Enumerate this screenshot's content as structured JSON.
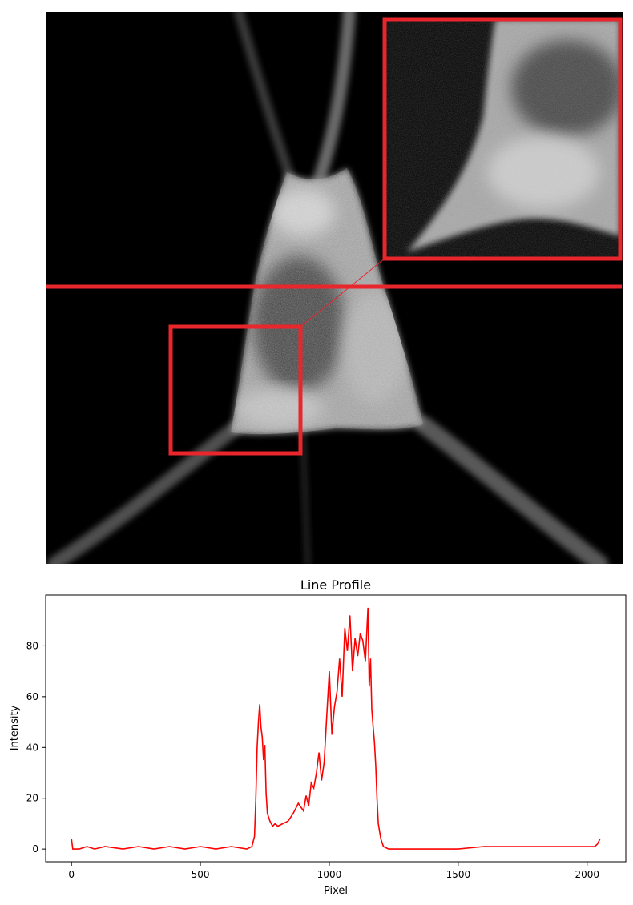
{
  "colors": {
    "profile_line": "#ff0000",
    "annotation": "#e8262c",
    "background": "#000000"
  },
  "image_panel": {
    "type": "grayscale-micrograph",
    "annotations": {
      "horizontal_line": "profile line across cell",
      "roi_box": "region of interest",
      "inset_box": "magnified inset of region of interest"
    }
  },
  "chart_data": {
    "type": "line",
    "title": "Line Profile",
    "xlabel": "Pixel",
    "ylabel": "Intensity",
    "xlim": [
      -100,
      2150
    ],
    "ylim": [
      -5,
      100
    ],
    "xticks": [
      0,
      500,
      1000,
      1500,
      2000
    ],
    "yticks": [
      0,
      20,
      40,
      60,
      80
    ],
    "grid": false,
    "series": [
      {
        "color": "#ff0000",
        "x": [
          0,
          5,
          15,
          30,
          60,
          90,
          130,
          200,
          260,
          320,
          380,
          440,
          500,
          560,
          620,
          680,
          700,
          710,
          715,
          720,
          725,
          730,
          735,
          740,
          745,
          750,
          755,
          760,
          770,
          780,
          790,
          800,
          820,
          840,
          860,
          880,
          900,
          910,
          920,
          930,
          940,
          950,
          960,
          970,
          980,
          990,
          1000,
          1010,
          1020,
          1030,
          1040,
          1050,
          1060,
          1070,
          1080,
          1090,
          1100,
          1110,
          1120,
          1130,
          1140,
          1150,
          1155,
          1160,
          1165,
          1170,
          1175,
          1180,
          1185,
          1190,
          1200,
          1210,
          1230,
          1300,
          1400,
          1500,
          1600,
          1700,
          1800,
          1900,
          2000,
          2030,
          2040,
          2045,
          2050
        ],
        "y": [
          4,
          0,
          0,
          0,
          1,
          0,
          1,
          0,
          1,
          0,
          1,
          0,
          1,
          0,
          1,
          0,
          1,
          5,
          19,
          40,
          50,
          57,
          48,
          44,
          35,
          41,
          22,
          14,
          11,
          9,
          10,
          9,
          10,
          11,
          14,
          18,
          15,
          21,
          17,
          26,
          24,
          30,
          38,
          27,
          34,
          52,
          70,
          45,
          56,
          62,
          75,
          60,
          87,
          78,
          92,
          70,
          83,
          76,
          85,
          82,
          74,
          95,
          64,
          75,
          55,
          48,
          42,
          33,
          20,
          10,
          4,
          1,
          0,
          0,
          0,
          0,
          1,
          1,
          1,
          1,
          1,
          1,
          2,
          3,
          4
        ]
      }
    ]
  }
}
